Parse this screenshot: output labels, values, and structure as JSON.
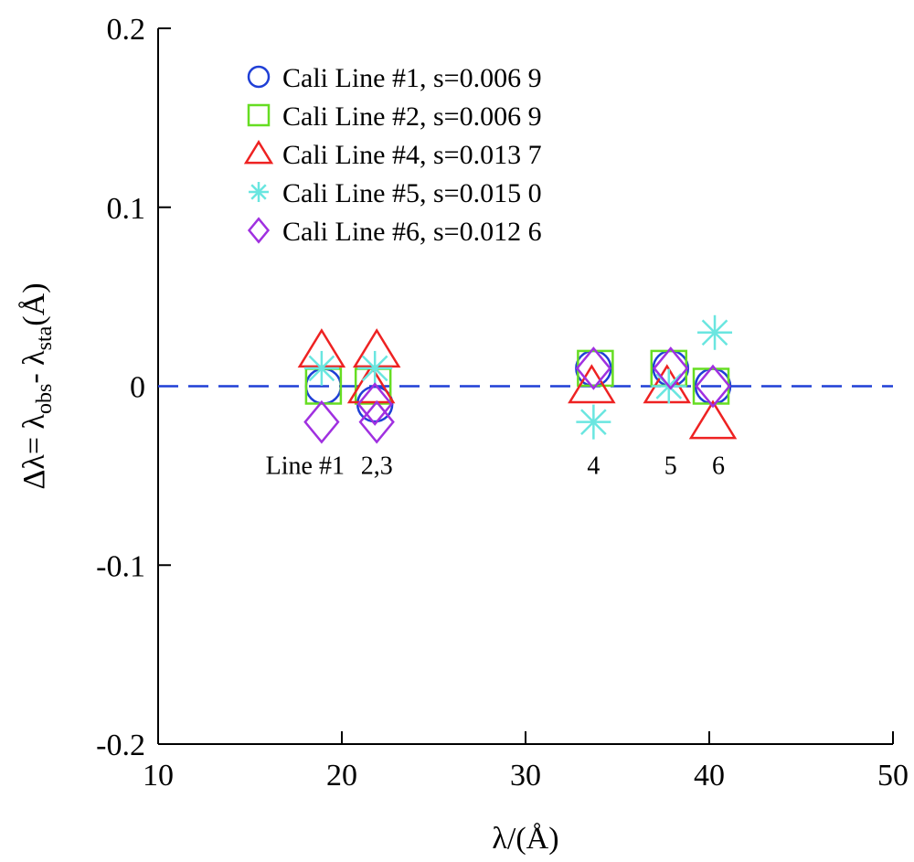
{
  "chart_data": {
    "type": "scatter",
    "xlabel": "λ/(Å)",
    "ylabel": {
      "prefix": "Δλ= λ",
      "sub1": "obs",
      "mid": "- λ",
      "sub2": "sta",
      "suffix": "(Å)"
    },
    "xlim": [
      10,
      50
    ],
    "ylim": [
      -0.2,
      0.2
    ],
    "x_ticks": [
      10,
      20,
      30,
      40,
      50
    ],
    "x_tick_labels": [
      "10",
      "20",
      "30",
      "40",
      "50"
    ],
    "y_ticks": [
      -0.2,
      -0.1,
      0,
      0.1,
      0.2
    ],
    "y_tick_labels": [
      "-0.2",
      "-0.1",
      "0",
      "0.1",
      "0.2"
    ],
    "grid": false,
    "legend_position": "top-left",
    "reference_line": {
      "y": 0,
      "style": "dashed",
      "color": "#1f3fd6"
    },
    "series": [
      {
        "name": "Cali Line #1, s=0.006 9",
        "marker": "circle",
        "color": "#1f3fd6",
        "points": [
          [
            19.0,
            0.0
          ],
          [
            21.8,
            -0.01
          ],
          [
            33.7,
            0.01
          ],
          [
            37.9,
            0.01
          ],
          [
            40.2,
            0.0
          ]
        ]
      },
      {
        "name": "Cali Line #2, s=0.006 9",
        "marker": "square",
        "color": "#66dd22",
        "points": [
          [
            19.0,
            0.0
          ],
          [
            21.7,
            0.0
          ],
          [
            33.8,
            0.01
          ],
          [
            37.8,
            0.01
          ],
          [
            40.1,
            0.0
          ]
        ]
      },
      {
        "name": "Cali Line #4, s=0.013 7",
        "marker": "triangle",
        "color": "#ee2222",
        "points": [
          [
            18.9,
            0.02
          ],
          [
            21.9,
            0.02
          ],
          [
            21.6,
            0.0
          ],
          [
            33.6,
            0.0
          ],
          [
            37.7,
            0.0
          ],
          [
            40.2,
            -0.02
          ]
        ]
      },
      {
        "name": "Cali Line #5, s=0.015 0",
        "marker": "asterisk",
        "color": "#6ae6e0",
        "points": [
          [
            18.9,
            0.01
          ],
          [
            21.8,
            0.01
          ],
          [
            33.7,
            -0.02
          ],
          [
            37.8,
            0.0
          ],
          [
            40.3,
            0.03
          ]
        ]
      },
      {
        "name": "Cali Line #6, s=0.012 6",
        "marker": "diamond",
        "color": "#a030e0",
        "points": [
          [
            18.9,
            -0.02
          ],
          [
            21.9,
            -0.02
          ],
          [
            21.8,
            -0.01
          ],
          [
            33.7,
            0.01
          ],
          [
            37.9,
            0.01
          ],
          [
            40.2,
            0.0
          ]
        ]
      }
    ],
    "annotations": [
      {
        "text": "Line #1",
        "x": 18.0,
        "y": -0.049
      },
      {
        "text": "2,3",
        "x": 21.9,
        "y": -0.049
      },
      {
        "text": "4",
        "x": 33.7,
        "y": -0.049
      },
      {
        "text": "5",
        "x": 37.9,
        "y": -0.049
      },
      {
        "text": "6",
        "x": 40.5,
        "y": -0.049
      }
    ]
  }
}
